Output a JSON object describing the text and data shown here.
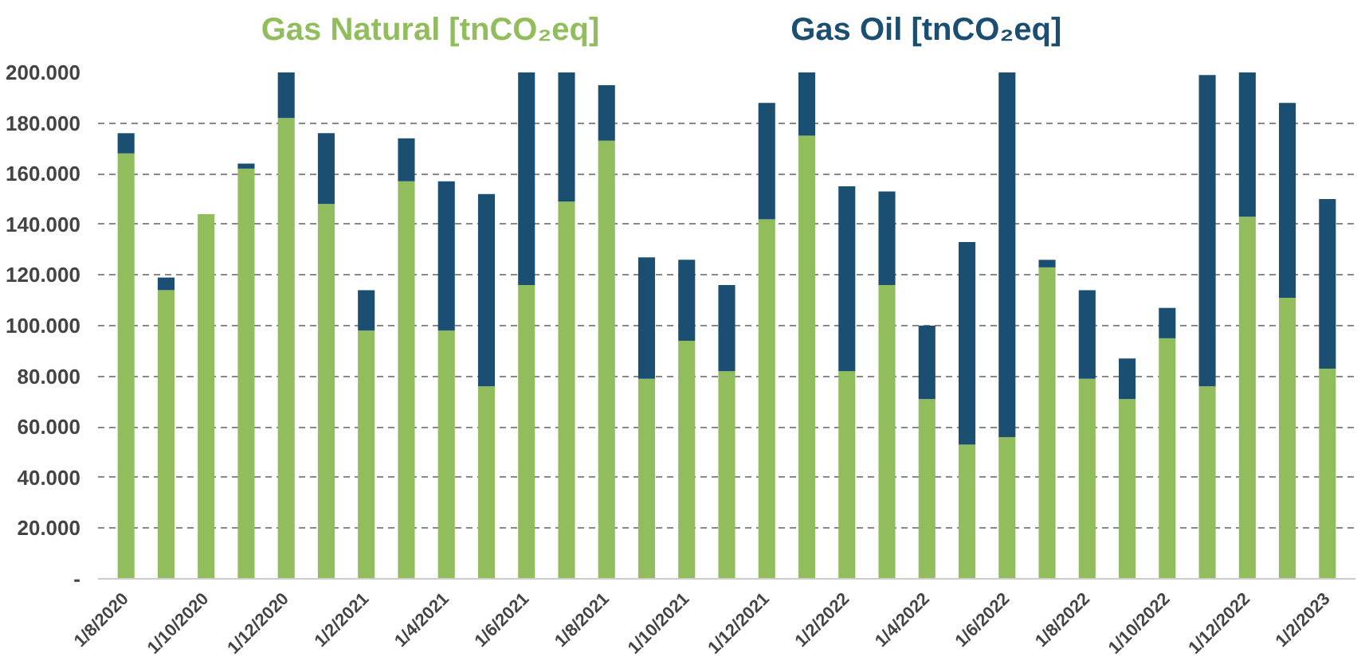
{
  "chart_data": {
    "type": "bar",
    "stacked": true,
    "categories": [
      "1/8/2020",
      null,
      "1/10/2020",
      null,
      "1/12/2020",
      null,
      "1/2/2021",
      null,
      "1/4/2021",
      null,
      "1/6/2021",
      null,
      "1/8/2021",
      null,
      "1/10/2021",
      null,
      "1/12/2021",
      null,
      "1/2/2022",
      null,
      "1/4/2022",
      null,
      "1/6/2022",
      null,
      "1/8/2022",
      null,
      "1/10/2022",
      null,
      "1/12/2022",
      null,
      "1/2/2023"
    ],
    "series": [
      {
        "name": "Gas Natural [tnCO₂eq]",
        "color": "#92bd5c",
        "values": [
          168,
          114,
          144,
          162,
          182,
          148,
          98,
          157,
          98,
          76,
          116,
          149,
          173,
          79,
          94,
          82,
          142,
          175,
          82,
          116,
          71,
          53,
          56,
          123,
          79,
          71,
          95,
          76,
          143,
          111,
          83
        ]
      },
      {
        "name": "Gas Oil [tnCO₂eq]",
        "color": "#1b4f72",
        "values": [
          8,
          5,
          0,
          2,
          18,
          28,
          16,
          17,
          59,
          76,
          84,
          51,
          22,
          48,
          32,
          34,
          46,
          25,
          73,
          37,
          29,
          80,
          144,
          3,
          35,
          16,
          12,
          123,
          57,
          77,
          67
        ]
      }
    ],
    "ylim": [
      0,
      200
    ],
    "yticks": [
      {
        "value": 0,
        "label": "-"
      },
      {
        "value": 20,
        "label": "20.000"
      },
      {
        "value": 40,
        "label": "40.000"
      },
      {
        "value": 60,
        "label": "60.000"
      },
      {
        "value": 80,
        "label": "80.000"
      },
      {
        "value": 100,
        "label": "100.000"
      },
      {
        "value": 120,
        "label": "120.000"
      },
      {
        "value": 140,
        "label": "140.000"
      },
      {
        "value": 160,
        "label": "160.000"
      },
      {
        "value": 180,
        "label": "180.000"
      },
      {
        "value": 200,
        "label": "200.000"
      }
    ],
    "grid": "y"
  }
}
